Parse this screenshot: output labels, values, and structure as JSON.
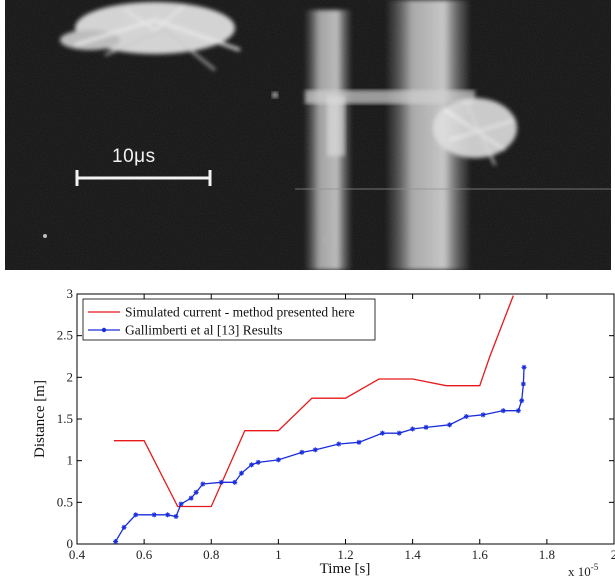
{
  "photo": {
    "scale_bar_label": "10μs"
  },
  "chart_data": {
    "type": "line",
    "xlabel": "Time [s]",
    "ylabel": "Distance [m]",
    "x_multiplier_base": "x 10",
    "x_multiplier_exp": "-5",
    "xlim": [
      0.4,
      2.0
    ],
    "ylim": [
      0,
      3
    ],
    "x_ticks": [
      "0.4",
      "0.6",
      "0.8",
      "1",
      "1.2",
      "1.4",
      "1.6",
      "1.8",
      "2"
    ],
    "y_ticks": [
      "0",
      "0.5",
      "1",
      "1.5",
      "2",
      "2.5",
      "3"
    ],
    "x_tick_values": [
      0.4,
      0.6,
      0.8,
      1.0,
      1.2,
      1.4,
      1.6,
      1.8,
      2.0
    ],
    "y_tick_values": [
      0,
      0.5,
      1.0,
      1.5,
      2.0,
      2.5,
      3.0
    ],
    "legend_position": "top-left",
    "colors": {
      "simulated": "#e8191b",
      "gallimberti": "#1a2ddb"
    },
    "series": [
      {
        "name": "Simulated current - method presented here",
        "marker": "none",
        "points": [
          [
            0.51,
            1.24
          ],
          [
            0.6,
            1.24
          ],
          [
            0.7,
            0.45
          ],
          [
            0.8,
            0.45
          ],
          [
            0.9,
            1.36
          ],
          [
            1.0,
            1.36
          ],
          [
            1.1,
            1.75
          ],
          [
            1.2,
            1.75
          ],
          [
            1.3,
            1.98
          ],
          [
            1.4,
            1.98
          ],
          [
            1.5,
            1.9
          ],
          [
            1.6,
            1.9
          ],
          [
            1.63,
            2.25
          ],
          [
            1.7,
            2.98
          ]
        ]
      },
      {
        "name": "Gallimberti et al [13] Results",
        "marker": "star",
        "points": [
          [
            0.515,
            0.03
          ],
          [
            0.54,
            0.2
          ],
          [
            0.575,
            0.35
          ],
          [
            0.63,
            0.35
          ],
          [
            0.67,
            0.35
          ],
          [
            0.695,
            0.33
          ],
          [
            0.71,
            0.48
          ],
          [
            0.74,
            0.55
          ],
          [
            0.755,
            0.62
          ],
          [
            0.775,
            0.72
          ],
          [
            0.83,
            0.74
          ],
          [
            0.87,
            0.74
          ],
          [
            0.89,
            0.85
          ],
          [
            0.92,
            0.95
          ],
          [
            0.94,
            0.98
          ],
          [
            1.0,
            1.01
          ],
          [
            1.07,
            1.1
          ],
          [
            1.11,
            1.13
          ],
          [
            1.18,
            1.2
          ],
          [
            1.24,
            1.22
          ],
          [
            1.31,
            1.33
          ],
          [
            1.36,
            1.33
          ],
          [
            1.4,
            1.38
          ],
          [
            1.44,
            1.4
          ],
          [
            1.51,
            1.43
          ],
          [
            1.56,
            1.53
          ],
          [
            1.61,
            1.55
          ],
          [
            1.67,
            1.6
          ],
          [
            1.715,
            1.6
          ],
          [
            1.725,
            1.72
          ],
          [
            1.73,
            1.92
          ],
          [
            1.732,
            2.12
          ]
        ]
      }
    ]
  }
}
